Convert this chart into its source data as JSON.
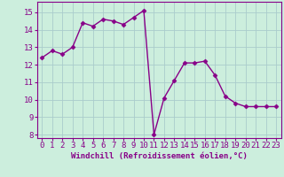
{
  "x": [
    0,
    1,
    2,
    3,
    4,
    5,
    6,
    7,
    8,
    9,
    10,
    11,
    12,
    13,
    14,
    15,
    16,
    17,
    18,
    19,
    20,
    21,
    22,
    23
  ],
  "y": [
    12.4,
    12.8,
    12.6,
    13.0,
    14.4,
    14.2,
    14.6,
    14.5,
    14.3,
    14.7,
    15.1,
    8.0,
    10.1,
    11.1,
    12.1,
    12.1,
    12.2,
    11.4,
    10.2,
    9.8,
    9.6,
    9.6,
    9.6,
    9.6
  ],
  "line_color": "#880088",
  "marker": "D",
  "marker_size": 2.5,
  "bg_color": "#cceedd",
  "grid_color": "#aacccc",
  "xlabel": "Windchill (Refroidissement éolien,°C)",
  "ylim": [
    7.8,
    15.6
  ],
  "xlim": [
    -0.5,
    23.5
  ],
  "yticks": [
    8,
    9,
    10,
    11,
    12,
    13,
    14,
    15
  ],
  "xticks": [
    0,
    1,
    2,
    3,
    4,
    5,
    6,
    7,
    8,
    9,
    10,
    11,
    12,
    13,
    14,
    15,
    16,
    17,
    18,
    19,
    20,
    21,
    22,
    23
  ],
  "xlabel_fontsize": 6.5,
  "tick_fontsize": 6.5,
  "line_width": 1.0,
  "spine_color": "#880088"
}
